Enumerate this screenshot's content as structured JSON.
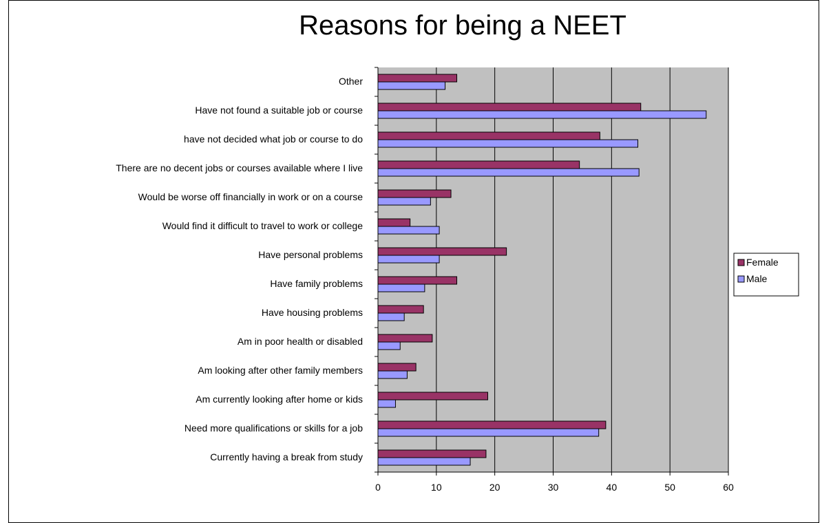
{
  "chart_data": {
    "type": "bar",
    "orientation": "horizontal",
    "title": "Reasons for being a NEET",
    "xlabel": "",
    "ylabel": "",
    "xlim": [
      0,
      60
    ],
    "xticks": [
      0,
      10,
      20,
      30,
      40,
      50,
      60
    ],
    "grid": true,
    "legend_position": "right",
    "categories": [
      "Other",
      "Have not found a suitable job or course",
      "have not decided what job or course to do",
      "There are no decent jobs or courses available where I live",
      "Would be worse off financially in work or on a course",
      "Would find it difficult to travel to work or college",
      "Have personal problems",
      "Have family problems",
      "Have housing problems",
      "Am in poor health or disabled",
      "Am looking after other family members",
      "Am currently looking after home or kids",
      "Need more qualifications or skills for a job",
      "Currently having a break from study"
    ],
    "series": [
      {
        "name": "Female",
        "color": "#993366",
        "values": [
          13.5,
          45,
          38,
          34.5,
          12.5,
          5.5,
          22,
          13.5,
          7.8,
          9.3,
          6.5,
          18.8,
          39,
          18.5
        ]
      },
      {
        "name": "Male",
        "color": "#9999ff",
        "values": [
          11.5,
          56.2,
          44.5,
          44.7,
          9,
          10.5,
          10.5,
          8,
          4.5,
          3.8,
          5,
          3,
          37.8,
          15.8
        ]
      }
    ],
    "plot_background": "#c0c0c0"
  }
}
